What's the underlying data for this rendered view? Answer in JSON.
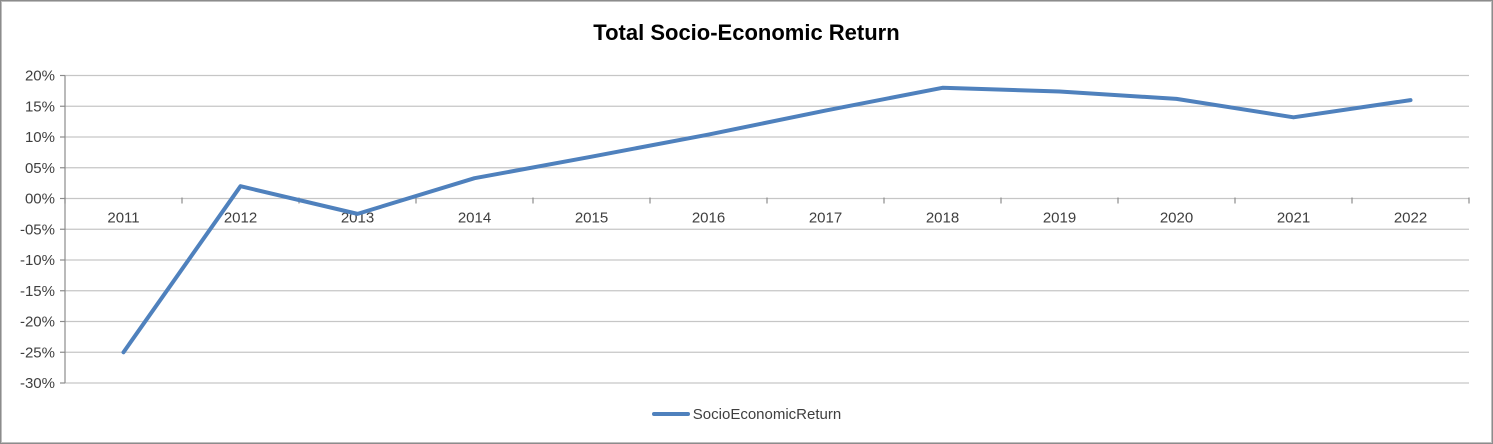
{
  "chart_data": {
    "type": "line",
    "title": "Total Socio-Economic Return",
    "categories": [
      "2011",
      "2012",
      "2013",
      "2014",
      "2015",
      "2016",
      "2017",
      "2018",
      "2019",
      "2020",
      "2021",
      "2022"
    ],
    "series": [
      {
        "name": "SocioEconomicReturn",
        "color": "#4F81BD",
        "values": [
          -25,
          2,
          -2.5,
          3.3,
          6.8,
          10.4,
          14.3,
          18,
          17.4,
          16.2,
          13.2,
          16
        ]
      }
    ],
    "ylim": [
      -30,
      20
    ],
    "yticks": [
      {
        "label": "20%",
        "value": 20
      },
      {
        "label": "15%",
        "value": 15
      },
      {
        "label": "10%",
        "value": 10
      },
      {
        "label": "05%",
        "value": 5
      },
      {
        "label": "00%",
        "value": 0
      },
      {
        "label": "-05%",
        "value": -5
      },
      {
        "label": "-10%",
        "value": -10
      },
      {
        "label": "-15%",
        "value": -15
      },
      {
        "label": "-20%",
        "value": -20
      },
      {
        "label": "-25%",
        "value": -25
      },
      {
        "label": "-30%",
        "value": -30
      }
    ],
    "grid": true,
    "legend_position": "bottom"
  },
  "colors": {
    "series_line": "#4F81BD",
    "gridline": "#c6c6c6",
    "axis_line": "#8c8c8c",
    "tick_label": "#3f3f3f",
    "title_text": "#000000",
    "border": "#8c8c8c",
    "background": "#ffffff"
  }
}
